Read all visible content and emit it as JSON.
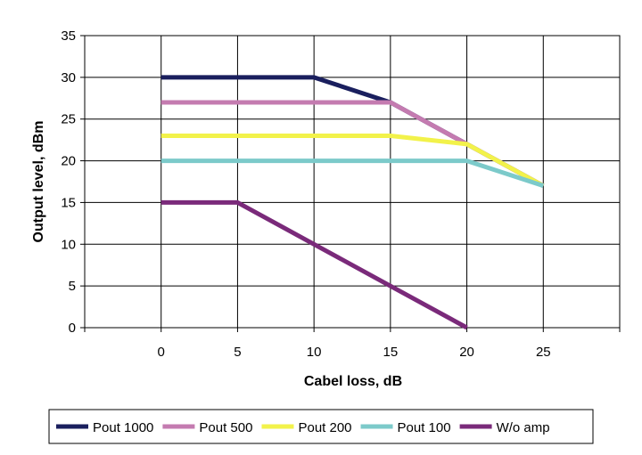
{
  "chart_data": {
    "type": "line",
    "xlabel": "Cabel loss, dB",
    "ylabel": "Output level, dBm",
    "xlim": [
      -5,
      30
    ],
    "ylim": [
      0,
      35
    ],
    "x_ticks": [
      0,
      5,
      10,
      15,
      20,
      25
    ],
    "y_ticks": [
      0,
      5,
      10,
      15,
      20,
      25,
      30,
      35
    ],
    "grid": true,
    "legend_position": "bottom",
    "series": [
      {
        "name": "Pout 1000",
        "color": "#1a1f5e",
        "points": [
          [
            0,
            30
          ],
          [
            10,
            30
          ],
          [
            15,
            27
          ],
          [
            20,
            22
          ],
          [
            25,
            17
          ]
        ]
      },
      {
        "name": "Pout 500",
        "color": "#c47bb0",
        "points": [
          [
            0,
            27
          ],
          [
            15,
            27
          ],
          [
            20,
            22
          ],
          [
            25,
            17
          ]
        ]
      },
      {
        "name": "Pout 200",
        "color": "#f2f24a",
        "points": [
          [
            0,
            23
          ],
          [
            15,
            23
          ],
          [
            20,
            22
          ],
          [
            25,
            17
          ]
        ]
      },
      {
        "name": "Pout 100",
        "color": "#7ccaca",
        "points": [
          [
            0,
            20
          ],
          [
            20,
            20
          ],
          [
            25,
            17
          ]
        ]
      },
      {
        "name": "W/o amp",
        "color": "#7a2a7a",
        "points": [
          [
            0,
            15
          ],
          [
            5,
            15
          ],
          [
            10,
            10
          ],
          [
            15,
            5
          ],
          [
            20,
            0
          ]
        ]
      }
    ]
  }
}
